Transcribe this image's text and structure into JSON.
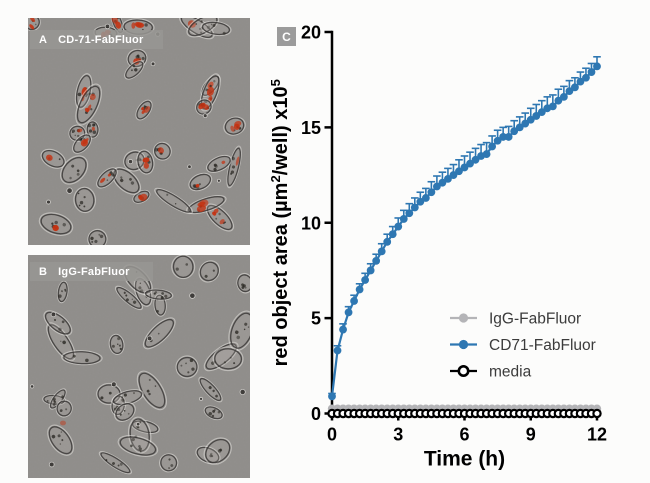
{
  "panels": {
    "a": {
      "letter": "A",
      "title": "CD-71-FabFluor"
    },
    "b": {
      "letter": "B",
      "title": "IgG-FabFluor"
    },
    "c": {
      "letter": "C"
    }
  },
  "chart_data": {
    "type": "line",
    "title": "",
    "xlabel": "Time (h)",
    "ylabel": "red object area (µm²/well) x10⁵",
    "ylabel_rich": [
      {
        "t": "red object area (µm"
      },
      {
        "sup": "2"
      },
      {
        "t": "/well) x10"
      },
      {
        "sup": "5"
      }
    ],
    "xlim": [
      0,
      12
    ],
    "ylim": [
      0,
      20
    ],
    "xticks": [
      0,
      3,
      6,
      9,
      12
    ],
    "yticks": [
      0,
      5,
      10,
      15,
      20
    ],
    "grid": false,
    "legend_position": "lower right",
    "x": [
      0,
      0.25,
      0.5,
      0.75,
      1,
      1.25,
      1.5,
      1.75,
      2,
      2.25,
      2.5,
      2.75,
      3,
      3.25,
      3.5,
      3.75,
      4,
      4.25,
      4.5,
      4.75,
      5,
      5.25,
      5.5,
      5.75,
      6,
      6.25,
      6.5,
      6.75,
      7,
      7.25,
      7.5,
      7.75,
      8,
      8.25,
      8.5,
      8.75,
      9,
      9.25,
      9.5,
      9.75,
      10,
      10.25,
      10.5,
      10.75,
      11,
      11.25,
      11.5,
      11.75,
      12
    ],
    "series": [
      {
        "name": "IgG-FabFluor",
        "color": "#b4b4b7",
        "marker": "filled-circle",
        "values": [
          0.25,
          0.25,
          0.25,
          0.25,
          0.25,
          0.25,
          0.25,
          0.25,
          0.25,
          0.25,
          0.25,
          0.25,
          0.25,
          0.25,
          0.25,
          0.25,
          0.25,
          0.25,
          0.25,
          0.25,
          0.25,
          0.25,
          0.25,
          0.25,
          0.25,
          0.25,
          0.25,
          0.25,
          0.25,
          0.25,
          0.25,
          0.25,
          0.25,
          0.25,
          0.25,
          0.25,
          0.25,
          0.25,
          0.25,
          0.25,
          0.25,
          0.25,
          0.25,
          0.25,
          0.25,
          0.25,
          0.25,
          0.25,
          0.25
        ]
      },
      {
        "name": "CD71-FabFluor",
        "color": "#2e77b2",
        "marker": "filled-circle",
        "values": [
          0.9,
          3.3,
          4.4,
          5.3,
          5.9,
          6.5,
          7.0,
          7.5,
          8.0,
          8.5,
          9.0,
          9.4,
          9.8,
          10.2,
          10.5,
          10.8,
          11.1,
          11.3,
          11.6,
          11.9,
          12.1,
          12.3,
          12.5,
          12.7,
          12.9,
          13.1,
          13.3,
          13.5,
          13.6,
          14.0,
          14.3,
          14.5,
          14.5,
          14.8,
          15.0,
          15.2,
          15.4,
          15.6,
          15.8,
          16.0,
          16.1,
          16.4,
          16.6,
          16.9,
          17.1,
          17.4,
          17.6,
          17.9,
          18.2
        ],
        "errors": [
          0.15,
          0.25,
          0.3,
          0.3,
          0.3,
          0.3,
          0.35,
          0.35,
          0.35,
          0.4,
          0.4,
          0.4,
          0.45,
          0.45,
          0.5,
          0.5,
          0.5,
          0.5,
          0.55,
          0.55,
          0.55,
          0.55,
          0.55,
          0.6,
          0.6,
          0.6,
          0.6,
          0.6,
          0.6,
          0.55,
          0.55,
          0.5,
          0.55,
          0.55,
          0.55,
          0.55,
          0.6,
          0.6,
          0.6,
          0.6,
          0.6,
          0.6,
          0.55,
          0.55,
          0.5,
          0.5,
          0.5,
          0.45,
          0.5
        ]
      },
      {
        "name": "media",
        "color": "#000000",
        "marker": "open-circle",
        "values": [
          0,
          0,
          0,
          0,
          0,
          0,
          0,
          0,
          0,
          0,
          0,
          0,
          0,
          0,
          0,
          0,
          0,
          0,
          0,
          0,
          0,
          0,
          0,
          0,
          0,
          0,
          0,
          0,
          0,
          0,
          0,
          0,
          0,
          0,
          0,
          0,
          0,
          0,
          0,
          0,
          0,
          0,
          0,
          0,
          0,
          0,
          0,
          0,
          0
        ]
      }
    ]
  },
  "colors": {
    "cd71_blue": "#2e77b2",
    "igg_gray": "#b4b4b7",
    "media_black": "#000000",
    "red_fluor": "#c5300f",
    "label_bar_bg": "#989693",
    "micro_bg": "#8f8d8a",
    "badge_bg": "#9b9b9b"
  }
}
